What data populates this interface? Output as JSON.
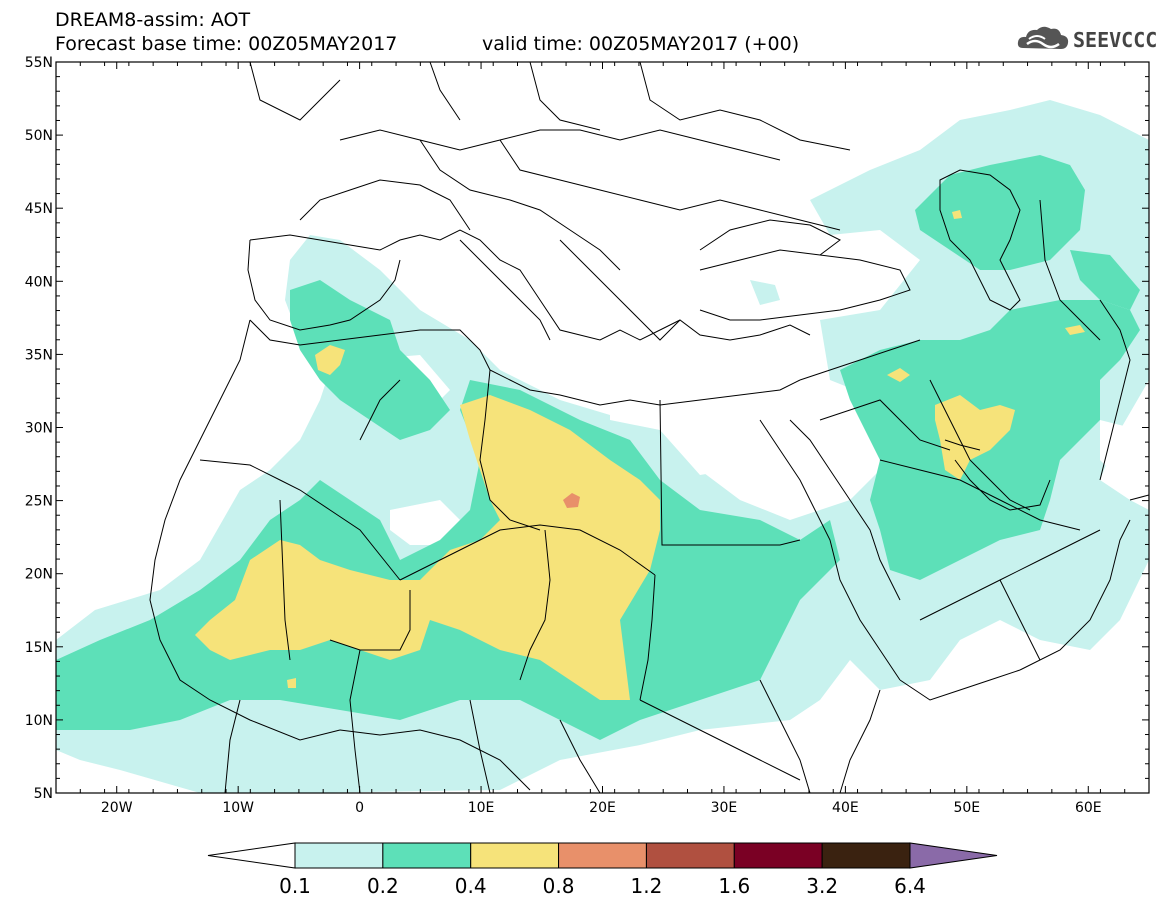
{
  "header": {
    "title": "DREAM8-assim: AOT",
    "base_time": "Forecast base time: 00Z05MAY2017",
    "valid_time": "valid time: 00Z05MAY2017 (+00)"
  },
  "logo": {
    "text": "SEEVCCC",
    "icon": "cloud-icon"
  },
  "axes": {
    "lon_ticks": [
      "20W",
      "10W",
      "0",
      "10E",
      "20E",
      "30E",
      "40E",
      "50E",
      "60E"
    ],
    "lat_ticks": [
      "55N",
      "50N",
      "45N",
      "40N",
      "35N",
      "30N",
      "25N",
      "20N",
      "15N",
      "10N",
      "5N"
    ]
  },
  "colorbar": {
    "labels": [
      "0.1",
      "0.2",
      "0.4",
      "0.8",
      "1.2",
      "1.6",
      "3.2",
      "6.4"
    ],
    "colors": [
      "#c8f2ee",
      "#5de0b8",
      "#f6e37a",
      "#e8906a",
      "#b05040",
      "#7a0024",
      "#3a2210",
      "#8a6aa8"
    ]
  },
  "palette": {
    "c01": "#c8f2ee",
    "c02": "#5de0b8",
    "c04": "#f6e37a",
    "c08": "#e8906a",
    "border": "#000000"
  }
}
